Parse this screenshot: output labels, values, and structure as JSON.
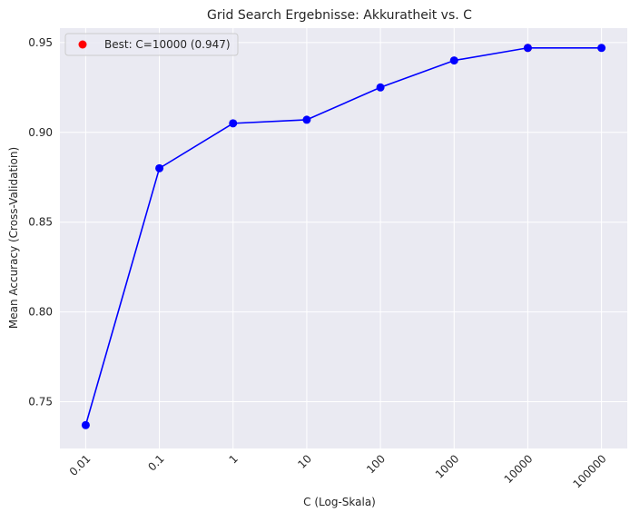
{
  "chart_data": {
    "type": "line",
    "title": "Grid Search Ergebnisse: Akkuratheit vs. C",
    "xlabel": "C (Log-Skala)",
    "ylabel": "Mean Accuracy (Cross-Validation)",
    "x_scale": "log",
    "x": [
      0.01,
      0.1,
      1,
      10,
      100,
      1000,
      10000,
      100000
    ],
    "x_tick_labels": [
      "0.01",
      "0.1",
      "1",
      "10",
      "100",
      "1000",
      "10000",
      "100000"
    ],
    "y_ticks": [
      0.75,
      0.8,
      0.85,
      0.9,
      0.95
    ],
    "y_tick_labels": [
      "0.75",
      "0.80",
      "0.85",
      "0.90",
      "0.95"
    ],
    "ylim": [
      0.724,
      0.958
    ],
    "grid": true,
    "series": [
      {
        "values": [
          0.737,
          0.88,
          0.905,
          0.907,
          0.925,
          0.94,
          0.947,
          0.947
        ],
        "color": "#0000ff",
        "marker": "circle"
      }
    ],
    "highlight": {
      "label": "Best: C=10000 (0.947)",
      "x": 10000,
      "y": 0.947,
      "color": "#ff0000"
    },
    "legend_position": "top-left",
    "plot_background": "#eaeaf2",
    "grid_color": "#ffffff"
  }
}
